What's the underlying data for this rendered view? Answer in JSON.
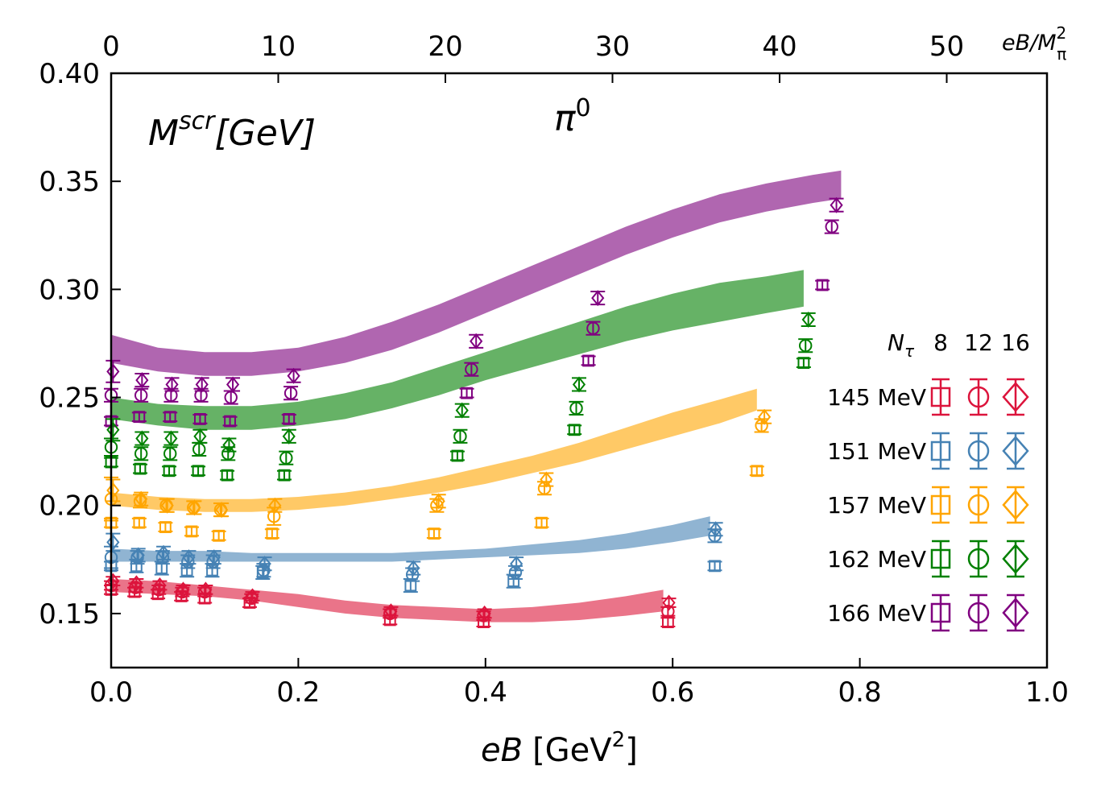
{
  "chart_data": {
    "type": "scatter",
    "title": "π",
    "title_superscript": "0",
    "ylabel_main": "M",
    "ylabel_super": "scr",
    "ylabel_unit": "[GeV]",
    "xlabel_var": "eB",
    "xlabel_unit_pre": "[GeV",
    "xlabel_unit_sup": "2",
    "xlabel_unit_post": "]",
    "top_xlabel_main": "eB/M",
    "top_xlabel_sub": "π",
    "top_xlabel_sup": "2",
    "xlim": [
      0.0,
      1.0
    ],
    "ylim": [
      0.125,
      0.4
    ],
    "top_xlim": [
      0,
      56
    ],
    "x_ticks": [
      "0.0",
      "0.2",
      "0.4",
      "0.6",
      "0.8",
      "1.0"
    ],
    "x_tick_values": [
      0.0,
      0.2,
      0.4,
      0.6,
      0.8,
      1.0
    ],
    "y_ticks": [
      "0.15",
      "0.20",
      "0.25",
      "0.30",
      "0.35",
      "0.40"
    ],
    "y_tick_values": [
      0.15,
      0.2,
      0.25,
      0.3,
      0.35,
      0.4
    ],
    "top_ticks": [
      "0",
      "10",
      "20",
      "30",
      "40",
      "50"
    ],
    "top_tick_values": [
      0,
      10,
      20,
      30,
      40,
      50
    ],
    "legend": {
      "header_label": "N",
      "header_sub": "τ",
      "nt_values": [
        "8",
        "12",
        "16"
      ],
      "placement": "right"
    },
    "series": [
      {
        "name": "166 MeV",
        "color": "#800080",
        "band_color": "#b066b0",
        "band": {
          "x": [
            0.0,
            0.05,
            0.1,
            0.15,
            0.2,
            0.25,
            0.3,
            0.35,
            0.4,
            0.45,
            0.5,
            0.55,
            0.6,
            0.65,
            0.7,
            0.75,
            0.78
          ],
          "low": [
            0.266,
            0.262,
            0.26,
            0.26,
            0.262,
            0.266,
            0.272,
            0.28,
            0.289,
            0.298,
            0.307,
            0.316,
            0.324,
            0.331,
            0.336,
            0.34,
            0.342
          ],
          "high": [
            0.279,
            0.273,
            0.271,
            0.271,
            0.273,
            0.278,
            0.285,
            0.293,
            0.302,
            0.311,
            0.32,
            0.329,
            0.337,
            0.344,
            0.349,
            0.353,
            0.355
          ]
        },
        "nt8": {
          "x": [
            0.0,
            0.03,
            0.063,
            0.095,
            0.127,
            0.19,
            0.38,
            0.51,
            0.76
          ],
          "y": [
            0.239,
            0.241,
            0.241,
            0.24,
            0.239,
            0.24,
            0.252,
            0.267,
            0.302
          ],
          "err": [
            0.002,
            0.002,
            0.002,
            0.002,
            0.002,
            0.002,
            0.002,
            0.002,
            0.002
          ]
        },
        "nt12": {
          "x": [
            0.0,
            0.032,
            0.064,
            0.096,
            0.128,
            0.192,
            0.385,
            0.515,
            0.77
          ],
          "y": [
            0.251,
            0.251,
            0.251,
            0.251,
            0.25,
            0.252,
            0.263,
            0.282,
            0.329
          ],
          "err": [
            0.003,
            0.003,
            0.003,
            0.003,
            0.003,
            0.003,
            0.003,
            0.003,
            0.003
          ]
        },
        "nt16": {
          "x": [
            0.002,
            0.033,
            0.065,
            0.097,
            0.13,
            0.195,
            0.39,
            0.52,
            0.775
          ],
          "y": [
            0.262,
            0.258,
            0.256,
            0.256,
            0.256,
            0.26,
            0.276,
            0.296,
            0.339
          ],
          "err": [
            0.005,
            0.003,
            0.003,
            0.003,
            0.003,
            0.003,
            0.003,
            0.003,
            0.003
          ]
        }
      },
      {
        "name": "162 MeV",
        "color": "#008000",
        "band_color": "#66b266",
        "band": {
          "x": [
            0.0,
            0.05,
            0.1,
            0.15,
            0.2,
            0.25,
            0.3,
            0.35,
            0.4,
            0.45,
            0.5,
            0.55,
            0.6,
            0.65,
            0.7,
            0.74
          ],
          "low": [
            0.24,
            0.237,
            0.235,
            0.235,
            0.237,
            0.24,
            0.245,
            0.251,
            0.258,
            0.264,
            0.27,
            0.276,
            0.281,
            0.285,
            0.289,
            0.292
          ],
          "high": [
            0.25,
            0.247,
            0.246,
            0.246,
            0.248,
            0.252,
            0.257,
            0.264,
            0.271,
            0.278,
            0.285,
            0.292,
            0.298,
            0.303,
            0.306,
            0.309
          ]
        },
        "nt8": {
          "x": [
            0.0,
            0.031,
            0.062,
            0.093,
            0.124,
            0.185,
            0.37,
            0.495,
            0.74
          ],
          "y": [
            0.22,
            0.217,
            0.216,
            0.216,
            0.214,
            0.214,
            0.223,
            0.235,
            0.266
          ],
          "err": [
            0.002,
            0.002,
            0.002,
            0.002,
            0.002,
            0.002,
            0.002,
            0.002,
            0.002
          ]
        },
        "nt12": {
          "x": [
            0.0,
            0.032,
            0.063,
            0.094,
            0.125,
            0.187,
            0.373,
            0.497,
            0.742
          ],
          "y": [
            0.227,
            0.224,
            0.224,
            0.226,
            0.224,
            0.222,
            0.232,
            0.245,
            0.274
          ],
          "err": [
            0.004,
            0.003,
            0.003,
            0.003,
            0.003,
            0.003,
            0.003,
            0.003,
            0.003
          ]
        },
        "nt16": {
          "x": [
            0.002,
            0.033,
            0.064,
            0.095,
            0.126,
            0.19,
            0.375,
            0.5,
            0.745
          ],
          "y": [
            0.235,
            0.231,
            0.231,
            0.232,
            0.228,
            0.232,
            0.244,
            0.256,
            0.286
          ],
          "err": [
            0.005,
            0.003,
            0.003,
            0.003,
            0.003,
            0.003,
            0.003,
            0.003,
            0.003
          ]
        }
      },
      {
        "name": "157 MeV",
        "color": "#ffa500",
        "band_color": "#ffc966",
        "band": {
          "x": [
            0.0,
            0.05,
            0.1,
            0.15,
            0.2,
            0.25,
            0.3,
            0.35,
            0.4,
            0.45,
            0.5,
            0.55,
            0.6,
            0.65,
            0.69
          ],
          "low": [
            0.2,
            0.198,
            0.197,
            0.197,
            0.198,
            0.2,
            0.203,
            0.206,
            0.21,
            0.215,
            0.22,
            0.226,
            0.232,
            0.238,
            0.244
          ],
          "high": [
            0.206,
            0.204,
            0.203,
            0.203,
            0.204,
            0.206,
            0.209,
            0.213,
            0.218,
            0.223,
            0.229,
            0.236,
            0.243,
            0.249,
            0.254
          ]
        },
        "nt8": {
          "x": [
            0.0,
            0.03,
            0.058,
            0.086,
            0.115,
            0.172,
            0.345,
            0.46,
            0.69
          ],
          "y": [
            0.192,
            0.192,
            0.19,
            0.188,
            0.186,
            0.187,
            0.187,
            0.192,
            0.216
          ],
          "err": [
            0.002,
            0.002,
            0.002,
            0.002,
            0.002,
            0.002,
            0.002,
            0.002,
            0.002
          ]
        },
        "nt12": {
          "x": [
            0.0,
            0.031,
            0.059,
            0.088,
            0.117,
            0.174,
            0.348,
            0.463,
            0.695
          ],
          "y": [
            0.203,
            0.202,
            0.2,
            0.199,
            0.198,
            0.195,
            0.2,
            0.208,
            0.237
          ],
          "err": [
            0.01,
            0.003,
            0.003,
            0.003,
            0.003,
            0.004,
            0.003,
            0.003,
            0.003
          ]
        },
        "nt16": {
          "x": [
            0.002,
            0.032,
            0.06,
            0.089,
            0.118,
            0.175,
            0.35,
            0.465,
            0.698
          ],
          "y": [
            0.207,
            0.203,
            0.2,
            0.199,
            0.198,
            0.2,
            0.202,
            0.212,
            0.241
          ],
          "err": [
            0.005,
            0.003,
            0.003,
            0.003,
            0.003,
            0.003,
            0.003,
            0.003,
            0.003
          ]
        }
      },
      {
        "name": "151 MeV",
        "color": "#4682b4",
        "band_color": "#90b4d2",
        "band": {
          "x": [
            0.0,
            0.05,
            0.1,
            0.15,
            0.2,
            0.25,
            0.3,
            0.35,
            0.4,
            0.45,
            0.5,
            0.55,
            0.6,
            0.64
          ],
          "low": [
            0.174,
            0.174,
            0.174,
            0.174,
            0.174,
            0.174,
            0.174,
            0.175,
            0.176,
            0.177,
            0.178,
            0.18,
            0.183,
            0.186
          ],
          "high": [
            0.18,
            0.179,
            0.179,
            0.178,
            0.178,
            0.178,
            0.178,
            0.179,
            0.18,
            0.182,
            0.184,
            0.187,
            0.191,
            0.195
          ]
        },
        "nt8": {
          "x": [
            0.0,
            0.027,
            0.054,
            0.081,
            0.108,
            0.162,
            0.32,
            0.43,
            0.645
          ],
          "y": [
            0.172,
            0.172,
            0.171,
            0.17,
            0.17,
            0.169,
            0.163,
            0.165,
            0.172
          ],
          "err": [
            0.002,
            0.003,
            0.003,
            0.003,
            0.003,
            0.003,
            0.003,
            0.003,
            0.002
          ]
        },
        "nt12": {
          "x": [
            0.0,
            0.028,
            0.055,
            0.082,
            0.109,
            0.163,
            0.322,
            0.432,
            0.645
          ],
          "y": [
            0.176,
            0.176,
            0.176,
            0.174,
            0.174,
            0.17,
            0.168,
            0.169,
            0.186
          ],
          "err": [
            0.005,
            0.003,
            0.003,
            0.003,
            0.003,
            0.003,
            0.003,
            0.003,
            0.003
          ]
        },
        "nt16": {
          "x": [
            0.002,
            0.029,
            0.056,
            0.083,
            0.11,
            0.164,
            0.323,
            0.433,
            0.646
          ],
          "y": [
            0.183,
            0.177,
            0.178,
            0.176,
            0.176,
            0.173,
            0.171,
            0.173,
            0.189
          ],
          "err": [
            0.004,
            0.003,
            0.003,
            0.003,
            0.003,
            0.003,
            0.003,
            0.003,
            0.003
          ]
        }
      },
      {
        "name": "145 MeV",
        "color": "#dc143c",
        "band_color": "#ea7489",
        "band": {
          "x": [
            0.0,
            0.05,
            0.1,
            0.15,
            0.2,
            0.25,
            0.3,
            0.35,
            0.4,
            0.45,
            0.5,
            0.55,
            0.59
          ],
          "low": [
            0.16,
            0.159,
            0.158,
            0.156,
            0.153,
            0.15,
            0.148,
            0.147,
            0.146,
            0.146,
            0.147,
            0.149,
            0.151
          ],
          "high": [
            0.166,
            0.165,
            0.163,
            0.161,
            0.159,
            0.156,
            0.154,
            0.153,
            0.152,
            0.153,
            0.155,
            0.158,
            0.161
          ]
        },
        "nt8": {
          "x": [
            0.0,
            0.025,
            0.05,
            0.075,
            0.1,
            0.148,
            0.298,
            0.398,
            0.595
          ],
          "y": [
            0.161,
            0.16,
            0.159,
            0.158,
            0.157,
            0.155,
            0.147,
            0.146,
            0.146
          ],
          "err": [
            0.002,
            0.002,
            0.002,
            0.002,
            0.002,
            0.002,
            0.002,
            0.002,
            0.002
          ]
        },
        "nt12": {
          "x": [
            0.0,
            0.026,
            0.051,
            0.076,
            0.1,
            0.15,
            0.298,
            0.398,
            0.595
          ],
          "y": [
            0.163,
            0.162,
            0.161,
            0.16,
            0.16,
            0.157,
            0.15,
            0.149,
            0.151
          ],
          "err": [
            0.002,
            0.002,
            0.002,
            0.002,
            0.002,
            0.002,
            0.002,
            0.002,
            0.002
          ]
        },
        "nt16": {
          "x": [
            0.002,
            0.027,
            0.052,
            0.077,
            0.101,
            0.151,
            0.299,
            0.399,
            0.596
          ],
          "y": [
            0.165,
            0.164,
            0.163,
            0.161,
            0.161,
            0.158,
            0.151,
            0.15,
            0.155
          ],
          "err": [
            0.002,
            0.002,
            0.002,
            0.002,
            0.002,
            0.002,
            0.002,
            0.002,
            0.002
          ]
        }
      }
    ],
    "legend_order": [
      "145 MeV",
      "151 MeV",
      "157 MeV",
      "162 MeV",
      "166 MeV"
    ]
  }
}
